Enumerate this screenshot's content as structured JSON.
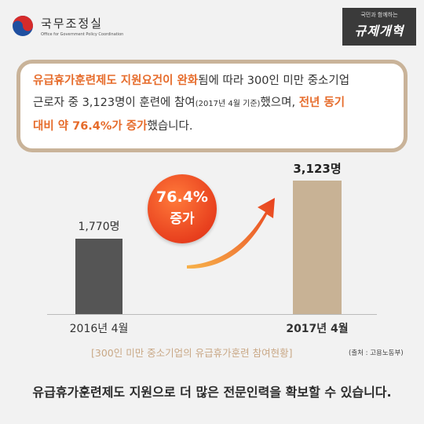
{
  "header": {
    "org_name": "국무조정실",
    "org_name_en": "Office for Government Policy Coordination",
    "badge_small": "국민과 함께하는",
    "badge_big": "규제개혁"
  },
  "quote": {
    "line1_hl": "유급휴가훈련제도 지원요건이 완화",
    "line1_rest": "됨에 따라 300인 미만 중소기업",
    "line2_a": "근로자 중 3,123명이 훈련에 참여",
    "line2_small": "(2017년 4월 기준)",
    "line2_b": "했으며, ",
    "line2_hl": "전년 동기",
    "line3_hl": "대비 약 76.4%가 증가",
    "line3_rest": "했습니다."
  },
  "chart_data": {
    "type": "bar",
    "categories": [
      "2016년 4월",
      "2017년 4월"
    ],
    "values": [
      1770,
      3123
    ],
    "value_labels": [
      "1,770명",
      "3,123명"
    ],
    "colors": [
      "#555555",
      "#c8b295"
    ],
    "ylim": [
      0,
      3500
    ],
    "title": "[300인 미만 중소기업의 유급휴가훈련 참여현황]",
    "annotation": {
      "value": "76.4%",
      "text": "증가",
      "color": "#e8401e"
    },
    "source": "(출처 : 고용노동부)"
  },
  "footer": {
    "text": "유급휴가훈련제도 지원으로 더 많은 전문인력을 확보할 수 있습니다."
  }
}
